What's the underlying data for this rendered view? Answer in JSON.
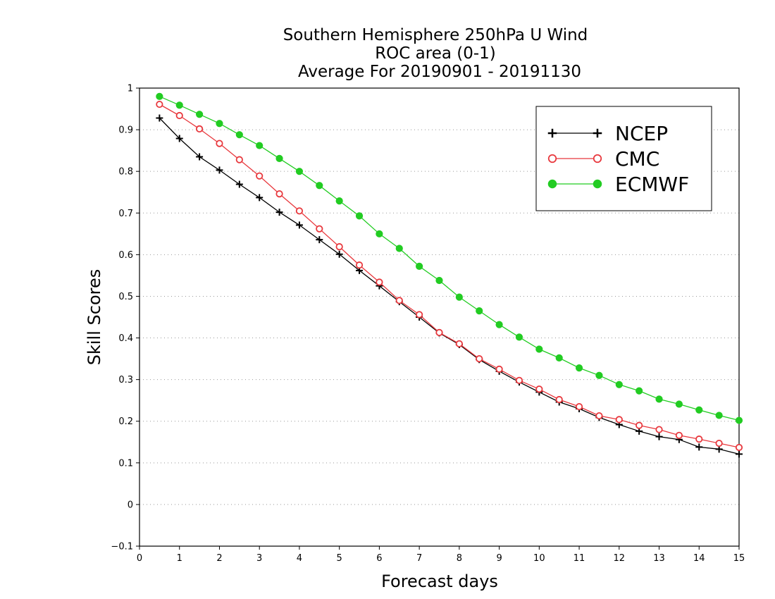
{
  "chart_data": {
    "type": "line",
    "title": [
      "Southern Hemisphere 250hPa U Wind",
      "ROC area (0-1)",
      "Average For 20190901 - 20191130"
    ],
    "xlabel": "Forecast days",
    "ylabel": "Skill Scores",
    "xlim": [
      0,
      15
    ],
    "ylim": [
      -0.1,
      1
    ],
    "x_ticks": [
      "0",
      "1",
      "2",
      "3",
      "4",
      "5",
      "6",
      "7",
      "8",
      "9",
      "10",
      "11",
      "12",
      "13",
      "14",
      "15"
    ],
    "y_ticks": [
      "−0.1",
      "0",
      "0.1",
      "0.2",
      "0.3",
      "0.4",
      "0.5",
      "0.6",
      "0.7",
      "0.8",
      "0.9",
      "1"
    ],
    "grid": "horizontal dotted",
    "legend_position": "top-right",
    "x": [
      0.5,
      1,
      1.5,
      2,
      2.5,
      3,
      3.5,
      4,
      4.5,
      5,
      5.5,
      6,
      6.5,
      7,
      7.5,
      8,
      8.5,
      9,
      9.5,
      10,
      10.5,
      11,
      11.5,
      12,
      12.5,
      13,
      13.5,
      14,
      14.5,
      15
    ],
    "series": [
      {
        "name": "NCEP",
        "color": "#000000",
        "marker": "plus",
        "values": [
          0.928,
          0.879,
          0.835,
          0.803,
          0.769,
          0.737,
          0.702,
          0.671,
          0.636,
          0.601,
          0.562,
          0.525,
          0.487,
          0.45,
          0.412,
          0.384,
          0.348,
          0.32,
          0.294,
          0.27,
          0.246,
          0.23,
          0.209,
          0.192,
          0.176,
          0.163,
          0.156,
          0.138,
          0.133,
          0.121
        ]
      },
      {
        "name": "CMC",
        "color": "#e8383d",
        "marker": "open-circle",
        "values": [
          0.961,
          0.934,
          0.902,
          0.867,
          0.828,
          0.789,
          0.746,
          0.705,
          0.662,
          0.619,
          0.575,
          0.534,
          0.49,
          0.456,
          0.413,
          0.386,
          0.35,
          0.325,
          0.298,
          0.277,
          0.252,
          0.235,
          0.213,
          0.204,
          0.19,
          0.18,
          0.166,
          0.157,
          0.147,
          0.137
        ]
      },
      {
        "name": "ECMWF",
        "color": "#22cc22",
        "marker": "filled-circle",
        "values": [
          0.98,
          0.959,
          0.937,
          0.915,
          0.888,
          0.862,
          0.831,
          0.8,
          0.766,
          0.729,
          0.693,
          0.65,
          0.615,
          0.572,
          0.538,
          0.498,
          0.465,
          0.432,
          0.402,
          0.373,
          0.352,
          0.328,
          0.31,
          0.288,
          0.273,
          0.253,
          0.241,
          0.227,
          0.214,
          0.202
        ]
      }
    ]
  }
}
